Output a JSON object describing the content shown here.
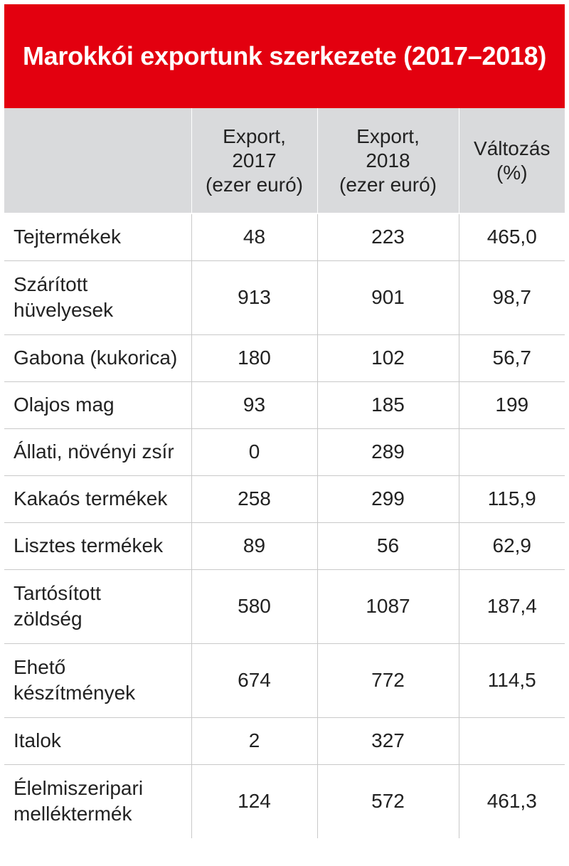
{
  "title": "Marokkói exportunk szerkezete (2017–2018)",
  "colors": {
    "title_background": "#e3000f",
    "title_text": "#ffffff",
    "header_background": "#d9dadc",
    "row_divider": "#c9c9c9"
  },
  "table": {
    "headers": [
      "",
      "Export,\n2017\n(ezer euró)",
      "Export,\n2018\n(ezer euró)",
      "Változás\n(%)"
    ],
    "rows": [
      {
        "name": "Tejtermékek",
        "export_2017": "48",
        "export_2018": "223",
        "change": "465,0"
      },
      {
        "name": "Szárított\nhüvelyesek",
        "export_2017": "913",
        "export_2018": "901",
        "change": "98,7"
      },
      {
        "name": "Gabona (kukorica)",
        "export_2017": "180",
        "export_2018": "102",
        "change": "56,7"
      },
      {
        "name": "Olajos mag",
        "export_2017": "93",
        "export_2018": "185",
        "change": "199"
      },
      {
        "name": "Állati, növényi zsír",
        "export_2017": "0",
        "export_2018": "289",
        "change": ""
      },
      {
        "name": "Kakaós termékek",
        "export_2017": "258",
        "export_2018": "299",
        "change": "115,9"
      },
      {
        "name": "Lisztes termékek",
        "export_2017": "89",
        "export_2018": "56",
        "change": "62,9"
      },
      {
        "name": "Tartósított\nzöldség",
        "export_2017": "580",
        "export_2018": "1087",
        "change": "187,4"
      },
      {
        "name": "Ehető\nkészítmények",
        "export_2017": "674",
        "export_2018": "772",
        "change": "114,5"
      },
      {
        "name": "Italok",
        "export_2017": "2",
        "export_2018": "327",
        "change": ""
      },
      {
        "name": "Élelmiszeripari\nmelléktermék",
        "export_2017": "124",
        "export_2018": "572",
        "change": "461,3"
      }
    ]
  }
}
